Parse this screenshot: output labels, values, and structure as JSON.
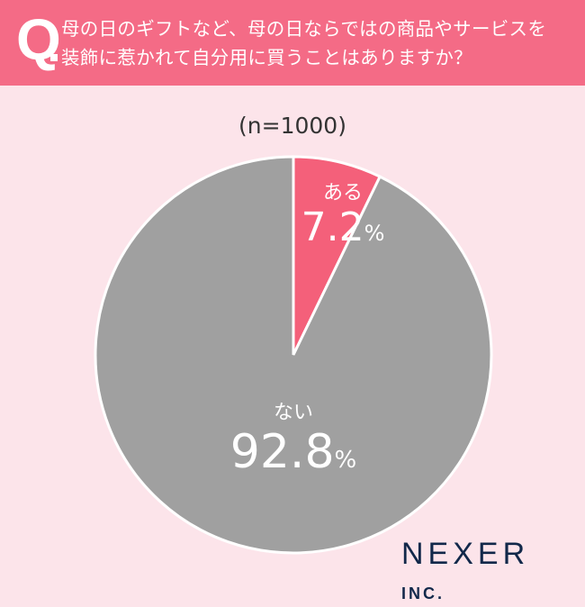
{
  "header": {
    "q_mark": "Q",
    "question": "母の日のギフトなど、母の日ならではの商品やサービスを\n装飾に惹かれて自分用に買うことはありますか？"
  },
  "chart_data": {
    "type": "pie",
    "note": "(n=1000)",
    "slices": [
      {
        "label": "ある",
        "value": 7.2,
        "color": "#f4607a"
      },
      {
        "label": "ない",
        "value": 92.8,
        "color": "#a0a0a0"
      }
    ],
    "unit": "%"
  },
  "logo": {
    "main": "NEXER",
    "suffix": "INC."
  }
}
